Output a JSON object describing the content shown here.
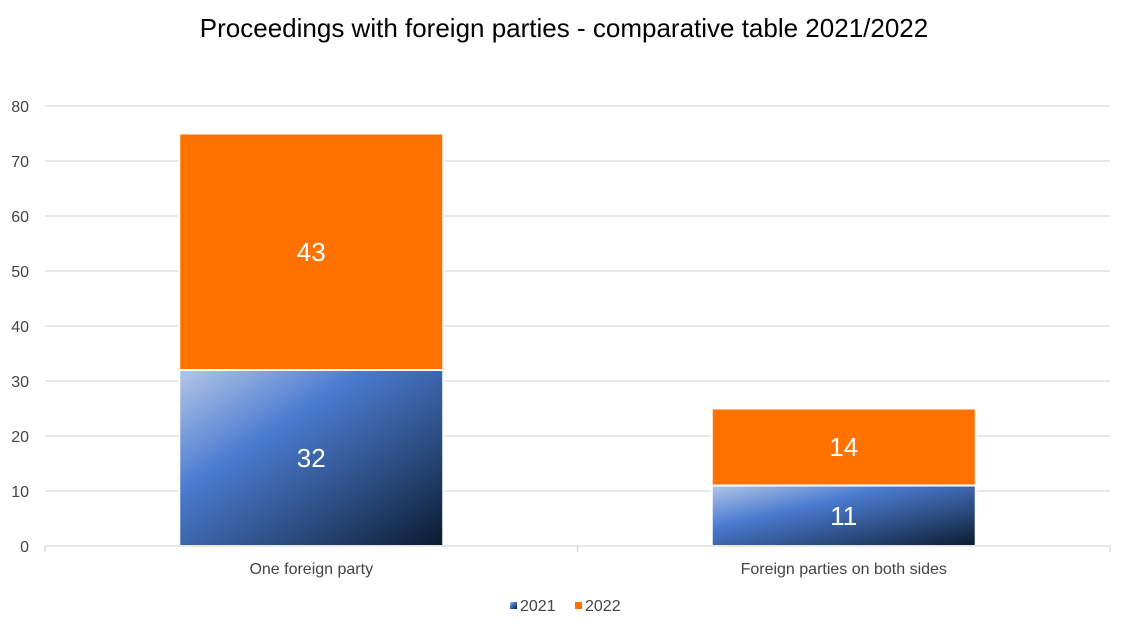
{
  "chart_data": {
    "type": "bar",
    "stacked": true,
    "title": "Proceedings with foreign parties - comparative table 2021/2022",
    "xlabel": "",
    "ylabel": "",
    "categories": [
      "One foreign party",
      "Foreign parties on both sides"
    ],
    "series": [
      {
        "name": "2021",
        "values": [
          32,
          11
        ],
        "color": "#4472c4"
      },
      {
        "name": "2022",
        "values": [
          43,
          14
        ],
        "color": "#ff7200"
      }
    ],
    "ylim": [
      0,
      80
    ],
    "yticks": [
      0,
      10,
      20,
      30,
      40,
      50,
      60,
      70,
      80
    ],
    "grid": true,
    "legend": "bottom",
    "data_labels": true
  }
}
